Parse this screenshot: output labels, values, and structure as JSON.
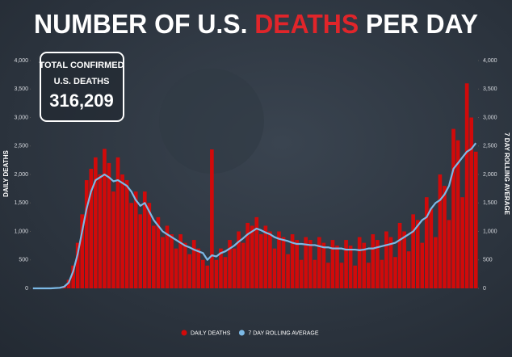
{
  "chart_data": {
    "type": "bar_line",
    "title": {
      "before": "NUMBER OF U.S.",
      "highlight": "DEATHS",
      "after": "PER DAY"
    },
    "callout": {
      "line1": "TOTAL CONFIRMED",
      "line2": "U.S. DEATHS",
      "value": "316,209"
    },
    "ylabel": "DAILY DEATHS",
    "y2label": "7 DAY ROLLING AVERAGE",
    "categories": [
      null,
      null,
      null,
      null,
      null,
      null,
      null,
      null,
      null,
      null,
      null,
      null,
      null,
      null,
      null,
      null,
      null,
      null,
      null,
      null,
      null,
      null,
      null,
      null,
      null,
      null,
      null,
      null,
      null,
      null,
      null,
      null,
      null,
      null,
      null,
      null,
      null,
      null,
      null,
      null,
      null,
      null,
      null,
      null,
      null,
      null,
      null,
      null,
      null,
      null,
      null,
      null,
      null,
      null,
      null,
      null,
      null,
      null,
      null,
      null,
      null,
      null,
      null,
      null,
      null,
      null,
      null,
      null,
      null,
      null,
      null,
      null,
      null,
      null,
      null,
      null,
      null,
      null,
      null,
      null,
      null,
      null,
      null,
      null,
      null,
      null,
      null,
      null,
      null,
      null,
      null,
      null,
      null,
      null,
      null,
      null,
      null,
      null,
      null,
      null
    ],
    "series": [
      {
        "name": "DAILY DEATHS",
        "kind": "bar",
        "color": "#d10a0a",
        "values": [
          0,
          0,
          0,
          0,
          5,
          10,
          15,
          40,
          150,
          400,
          800,
          1300,
          1900,
          2100,
          2300,
          2000,
          2450,
          2200,
          1700,
          2300,
          2000,
          1900,
          1500,
          1700,
          1300,
          1700,
          1500,
          1100,
          1250,
          900,
          1100,
          950,
          700,
          950,
          800,
          600,
          850,
          700,
          500,
          400,
          2440,
          500,
          700,
          550,
          850,
          700,
          1000,
          800,
          1150,
          1100,
          1250,
          950,
          1100,
          1000,
          700,
          1000,
          900,
          600,
          950,
          850,
          500,
          900,
          850,
          500,
          900,
          800,
          450,
          850,
          750,
          450,
          850,
          750,
          400,
          900,
          800,
          450,
          950,
          850,
          500,
          1000,
          900,
          550,
          1150,
          1000,
          650,
          1300,
          1200,
          800,
          1600,
          1400,
          900,
          2000,
          1800,
          1200,
          2800,
          2600,
          1600,
          3600,
          3000,
          2400
        ]
      },
      {
        "name": "7 DAY ROLLING AVERAGE",
        "kind": "line",
        "axis": "y2",
        "color": "#7cb9e6",
        "values": [
          0,
          0,
          0,
          0,
          0,
          5,
          10,
          30,
          100,
          300,
          600,
          1000,
          1400,
          1700,
          1900,
          1950,
          2000,
          1950,
          1880,
          1900,
          1850,
          1800,
          1700,
          1550,
          1450,
          1500,
          1350,
          1200,
          1100,
          1000,
          950,
          900,
          850,
          800,
          750,
          720,
          680,
          650,
          620,
          500,
          580,
          560,
          620,
          650,
          700,
          750,
          820,
          880,
          950,
          1000,
          1050,
          1020,
          980,
          950,
          900,
          870,
          850,
          830,
          800,
          780,
          780,
          770,
          760,
          760,
          740,
          720,
          720,
          700,
          700,
          700,
          680,
          680,
          680,
          670,
          680,
          700,
          700,
          720,
          740,
          760,
          780,
          800,
          850,
          900,
          950,
          1000,
          1100,
          1200,
          1250,
          1400,
          1500,
          1550,
          1650,
          1800,
          2100,
          2200,
          2300,
          2400,
          2450,
          2550
        ]
      }
    ],
    "ylim": [
      0,
      4000
    ],
    "yticks": [
      0,
      500,
      {
        "value": 1000,
        "label": "1,000"
      },
      {
        "value": 1500,
        "label": "1,500"
      },
      {
        "value": 2000,
        "label": "2,000"
      },
      {
        "value": 2500,
        "label": "2,500"
      },
      {
        "value": 3000,
        "label": "3,000"
      },
      {
        "value": 3500,
        "label": "3,500"
      },
      {
        "value": 4000,
        "label": "4,000"
      }
    ],
    "y2lim": [
      0,
      4000
    ],
    "y2ticks": [
      0,
      500,
      {
        "value": 1000,
        "label": "1,000"
      },
      {
        "value": 1500,
        "label": "1,500"
      },
      {
        "value": 2000,
        "label": "2,000"
      },
      {
        "value": 2500,
        "label": "2,500"
      },
      {
        "value": 3000,
        "label": "3,000"
      },
      {
        "value": 3500,
        "label": "3,500"
      },
      {
        "value": 4000,
        "label": "4,000"
      }
    ]
  }
}
